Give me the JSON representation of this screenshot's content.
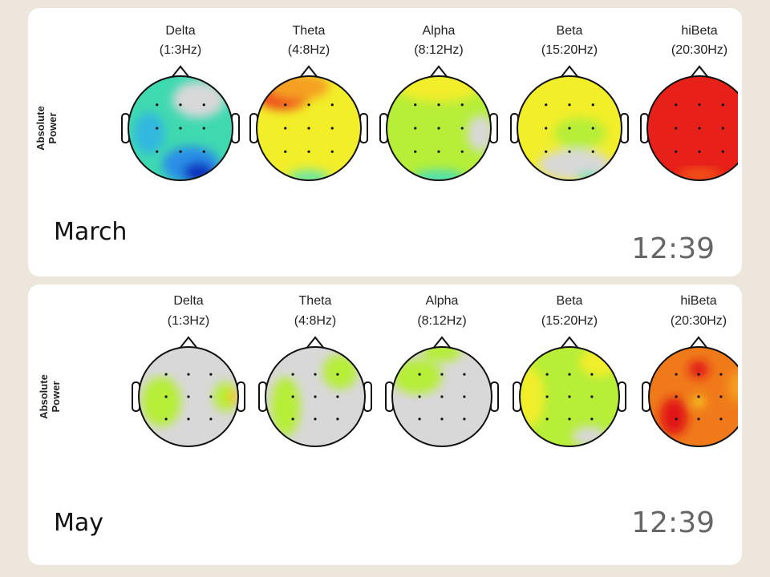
{
  "messages": [
    {
      "image": {
        "ylabel": [
          "Absolute",
          "Power"
        ],
        "bands": [
          {
            "name": "Delta",
            "range": "(1:3Hz)"
          },
          {
            "name": "Theta",
            "range": "(4:8Hz)"
          },
          {
            "name": "Alpha",
            "range": "(8:12Hz)"
          },
          {
            "name": "Beta",
            "range": "(15:20Hz)"
          },
          {
            "name": "hiBeta",
            "range": "(20:30Hz)"
          }
        ]
      },
      "caption": "March",
      "time": "12:39"
    },
    {
      "image": {
        "ylabel": [
          "Absolute",
          "Power"
        ],
        "bands": [
          {
            "name": "Delta",
            "range": "(1:3Hz)"
          },
          {
            "name": "Theta",
            "range": "(4:8Hz)"
          },
          {
            "name": "Alpha",
            "range": "(8:12Hz)"
          },
          {
            "name": "Beta",
            "range": "(15:20Hz)"
          },
          {
            "name": "hiBeta",
            "range": "(20:30Hz)"
          }
        ]
      },
      "caption": "May",
      "time": "12:39"
    }
  ]
}
